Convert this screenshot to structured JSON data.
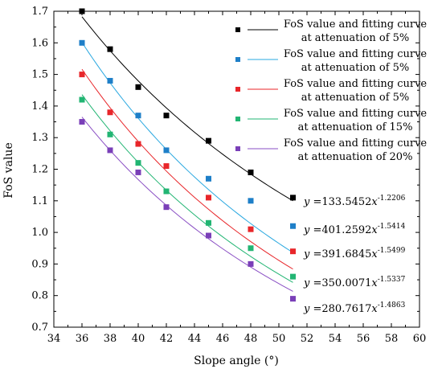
{
  "chart_data": {
    "type": "scatter",
    "xlabel": "Slope angle (°)",
    "ylabel": "FoS value",
    "xlim": [
      34,
      60
    ],
    "ylim": [
      0.7,
      1.7
    ],
    "xticks": [
      "34",
      "36",
      "38",
      "40",
      "42",
      "44",
      "46",
      "48",
      "50",
      "52",
      "54",
      "56",
      "58",
      "60"
    ],
    "yticks": [
      "0.7",
      "0.8",
      "0.9",
      "1.0",
      "1.1",
      "1.2",
      "1.3",
      "1.4",
      "1.5",
      "1.6",
      "1.7"
    ],
    "x": [
      36,
      38,
      40,
      42,
      45,
      48,
      51
    ],
    "series": [
      {
        "name_lines": [
          "FoS value and fitting curve",
          "at attenuation of 5%"
        ],
        "color": "#000000",
        "marker_color": "#000000",
        "values": [
          1.7,
          1.58,
          1.46,
          1.37,
          1.29,
          1.19,
          1.11
        ],
        "fit": {
          "a": 133.5452,
          "b": -1.2206
        },
        "equation": {
          "lhs": "y",
          "eq": " =133.5452",
          "var": "x",
          "exp": "-1.2206"
        }
      },
      {
        "name_lines": [
          "FoS value and fitting curve",
          "at attenuation of 5%"
        ],
        "color": "#2aa8e0",
        "marker_color": "#1e7fc8",
        "values": [
          1.6,
          1.48,
          1.37,
          1.26,
          1.17,
          1.1,
          1.02
        ],
        "fit": {
          "a": 401.2592,
          "b": -1.5414
        },
        "equation": {
          "lhs": "y",
          "eq": " =401.2592",
          "var": "x",
          "exp": "-1.5414"
        }
      },
      {
        "name_lines": [
          "FoS value and fitting curve",
          "at attenuation of 5%"
        ],
        "color": "#e8262a",
        "marker_color": "#e8262a",
        "values": [
          1.5,
          1.38,
          1.28,
          1.21,
          1.11,
          1.01,
          0.94
        ],
        "fit": {
          "a": 391.6845,
          "b": -1.5499
        },
        "equation": {
          "lhs": "y",
          "eq": " =391.6845",
          "var": "x",
          "exp": "-1.5499"
        }
      },
      {
        "name_lines": [
          "FoS value and fitting curve",
          "at attenuation of 15%"
        ],
        "color": "#22b573",
        "marker_color": "#22b573",
        "values": [
          1.42,
          1.31,
          1.22,
          1.13,
          1.03,
          0.95,
          0.86
        ],
        "fit": {
          "a": 350.0071,
          "b": -1.5337
        },
        "equation": {
          "lhs": "y",
          "eq": " =350.0071",
          "var": "x",
          "exp": "-1.5337"
        }
      },
      {
        "name_lines": [
          "FoS value and fitting curve",
          "at attenuation of 20%"
        ],
        "color": "#8a4fc4",
        "marker_color": "#7a3fb8",
        "values": [
          1.35,
          1.26,
          1.19,
          1.08,
          0.99,
          0.9,
          0.79
        ],
        "fit": {
          "a": 280.7617,
          "b": -1.4863
        },
        "equation": {
          "lhs": "y",
          "eq": " =280.7617",
          "var": "x",
          "exp": "-1.4863"
        }
      }
    ],
    "grid": false,
    "legend": "top-right"
  }
}
